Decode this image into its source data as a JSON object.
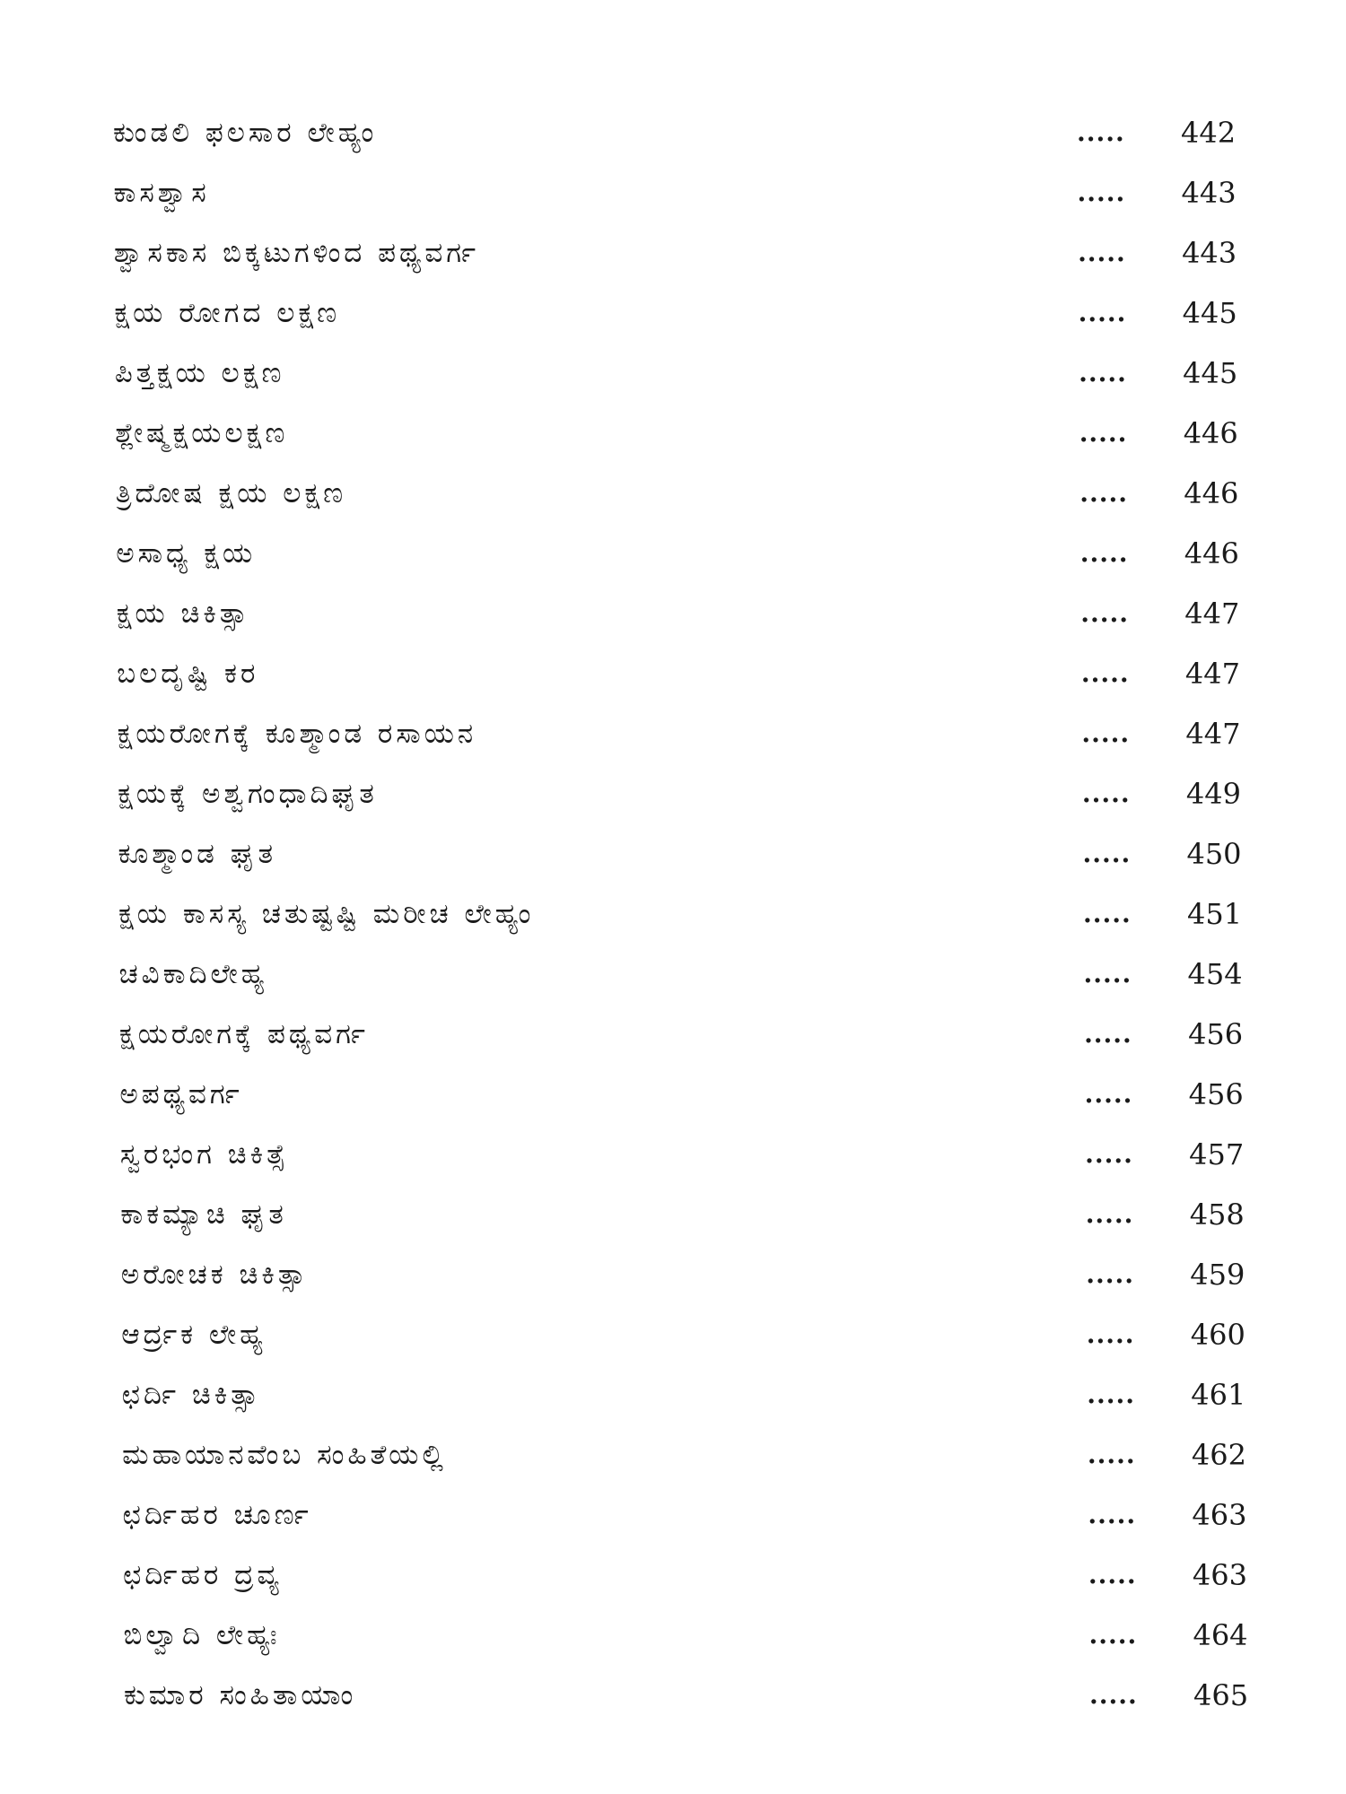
{
  "toc": {
    "leader": ".....",
    "entries": [
      {
        "title": "ಕುಂಡಲಿ ಫಲಸಾರ ಲೇಹ್ಯಂ",
        "page": "442"
      },
      {
        "title": "ಕಾಸಶ್ವಾಸ",
        "page": "443"
      },
      {
        "title": "ಶ್ವಾಸಕಾಸ ಬಿಕ್ಕಟುಗಳಿಂದ ಪಥ್ಯವರ್ಗ",
        "page": "443"
      },
      {
        "title": "ಕ್ಷಯ ರೋಗದ ಲಕ್ಷಣ",
        "page": "445"
      },
      {
        "title": "ಪಿತ್ತಕ್ಷಯ ಲಕ್ಷಣ",
        "page": "445"
      },
      {
        "title": "ಶ್ಲೇಷ್ಮಕ್ಷಯಲಕ್ಷಣ",
        "page": "446"
      },
      {
        "title": "ತ್ರಿದೋಷ ಕ್ಷಯ ಲಕ್ಷಣ",
        "page": "446"
      },
      {
        "title": "ಅಸಾಧ್ಯ ಕ್ಷಯ",
        "page": "446"
      },
      {
        "title": "ಕ್ಷಯ ಚಿಕಿತ್ಸಾ",
        "page": "447"
      },
      {
        "title": "ಬಲದೃಷ್ಟಿ ಕರ",
        "page": "447"
      },
      {
        "title": "ಕ್ಷಯರೋಗಕ್ಕೆ ಕೂಶ್ಮಾಂಡ ರಸಾಯನ",
        "page": "447"
      },
      {
        "title": "ಕ್ಷಯಕ್ಕೆ ಅಶ್ವಗಂಧಾದಿಘೃತ",
        "page": "449"
      },
      {
        "title": "ಕೂಶ್ಮಾಂಡ ಘೃತ",
        "page": "450"
      },
      {
        "title": "ಕ್ಷಯ ಕಾಸಸ್ಯ ಚತುಷ್ಟಷ್ಟಿ ಮರೀಚ ಲೇಹ್ಯಂ",
        "page": "451"
      },
      {
        "title": "ಚವಿಕಾದಿಲೇಹ್ಯ",
        "page": "454"
      },
      {
        "title": "ಕ್ಷಯರೋಗಕ್ಕೆ ಪಥ್ಯವರ್ಗ",
        "page": "456"
      },
      {
        "title": "ಅಪಥ್ಯವರ್ಗ",
        "page": "456"
      },
      {
        "title": "ಸ್ವರಭಂಗ ಚಿಕಿತ್ಸೆ",
        "page": "457"
      },
      {
        "title": "ಕಾಕಮ್ಯಾಚಿ ಘೃತ",
        "page": "458"
      },
      {
        "title": "ಅರೋಚಕ ಚಿಕಿತ್ಸಾ",
        "page": "459"
      },
      {
        "title": "ಆರ್ದ್ರಕ ಲೇಹ್ಯ",
        "page": "460"
      },
      {
        "title": "ಛರ್ದಿ ಚಿಕಿತ್ಸಾ",
        "page": "461"
      },
      {
        "title": "ಮಹಾಯಾನವೆಂಬ ಸಂಹಿತೆಯಲ್ಲಿ",
        "page": "462"
      },
      {
        "title": "ಛರ್ದಿಹರ ಚೂರ್ಣ",
        "page": "463"
      },
      {
        "title": "ಛರ್ದಿಹರ ದ್ರವ್ಯ",
        "page": "463"
      },
      {
        "title": "ಬಿಲ್ವಾದಿ ಲೇಹ್ಯಃ",
        "page": "464"
      },
      {
        "title": "ಕುಮಾರ ಸಂಹಿತಾಯಾಂ",
        "page": "465"
      }
    ]
  }
}
